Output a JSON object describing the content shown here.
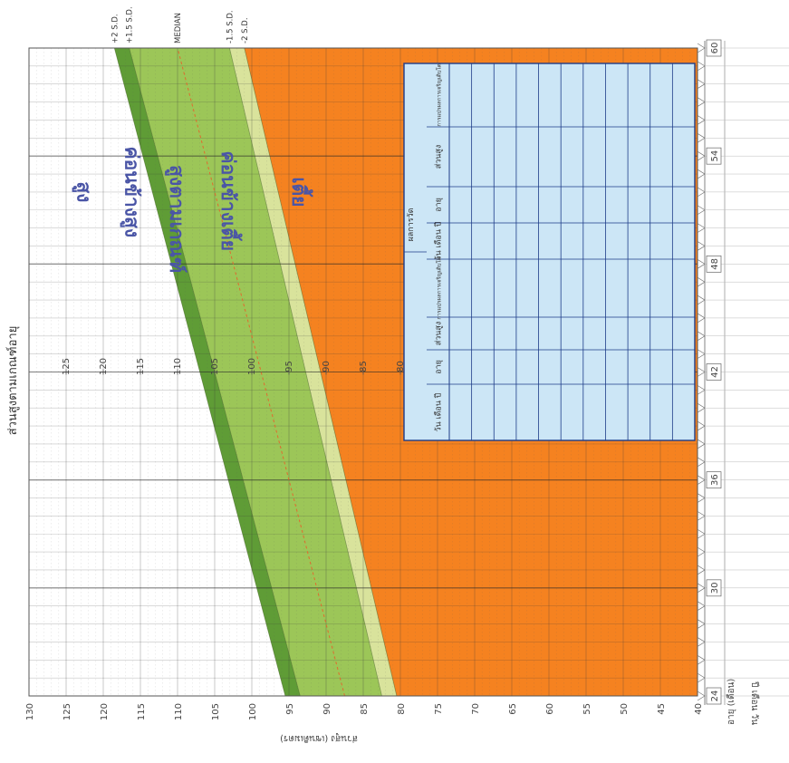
{
  "chart_data": {
    "type": "area",
    "title": "ส่วนสูงตามเกณฑ์อายุ",
    "ylabel": "ส่วนสูง (เซนติเมตร)",
    "xlabel": "อายุ (เดือน)",
    "xlabel_extra": "ปี เดือน วัน",
    "xlim": [
      24,
      60
    ],
    "ylim": [
      40,
      130
    ],
    "x_ticks": [
      "24",
      "30",
      "36",
      "42",
      "48",
      "54",
      "60"
    ],
    "y_ticks": [
      "40",
      "45",
      "50",
      "55",
      "60",
      "65",
      "70",
      "75",
      "80",
      "85",
      "90",
      "95",
      "100",
      "105",
      "110",
      "115",
      "120",
      "125",
      "130"
    ],
    "inner_ticks": [
      "80",
      "85",
      "90",
      "95",
      "100",
      "105",
      "110",
      "115",
      "120",
      "125"
    ],
    "x": [
      24,
      60
    ],
    "series": [
      {
        "name": "+2 S.D.",
        "values": [
          95.5,
          118.5
        ]
      },
      {
        "name": "+1.5 S.D.",
        "values": [
          93.5,
          116.5
        ]
      },
      {
        "name": "MEDIAN",
        "values": [
          87.5,
          110.0
        ]
      },
      {
        "name": "-1.5 S.D.",
        "values": [
          82.5,
          103.0
        ]
      },
      {
        "name": "-2 S.D.",
        "values": [
          80.5,
          101.0
        ]
      }
    ],
    "zones": [
      {
        "label": "สูง",
        "x": 52,
        "y": 123.5
      },
      {
        "label": "ค่อนข้างสูง",
        "x": 52,
        "y": 117
      },
      {
        "label": "สูงตามเกณฑ์",
        "x": 50.5,
        "y": 111
      },
      {
        "label": "ค่อนข้างเตี้ย",
        "x": 51.5,
        "y": 104
      },
      {
        "label": "เตี้ย",
        "x": 52,
        "y": 94.5
      }
    ],
    "colors": {
      "above": "#ffffff",
      "dark_green": "#5f9c36",
      "light_green": "#9cc658",
      "pale_green": "#d9e39c",
      "below": "#f58220",
      "median_line": "#e06b2e",
      "zone_text": "#4a55a6",
      "table_fill": "#cce6f6",
      "table_border": "#1e3c88"
    },
    "table": {
      "title": "ผลการวัด",
      "columns": [
        "วัน เดือน ปี",
        "อายุ",
        "ส่วนสูง",
        "การแปรผลการเจริญเติบโต",
        "วัน เดือน ปี",
        "อายุ",
        "ส่วนสูง",
        "การแปรผลการเจริญเติบโต"
      ]
    },
    "orientation": "rotated-90-counterclockwise",
    "grid": true
  }
}
